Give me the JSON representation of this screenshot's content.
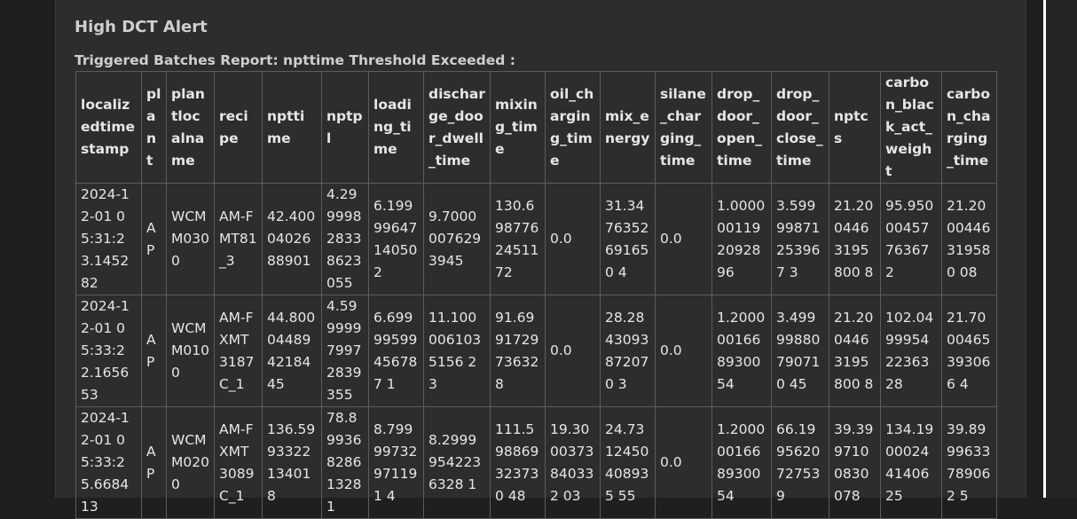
{
  "alert": {
    "title": "High DCT Alert",
    "subtitle": "Triggered Batches Report: npttime Threshold Exceeded :"
  },
  "table": {
    "columns": [
      "localizedtimestamp",
      "plant",
      "plantlocalname",
      "recipe",
      "npttime",
      "nptpl",
      "loading_time",
      "discharge_door_dwell_time",
      "mixing_time",
      "oil_charging_time",
      "mix_energy",
      "silane_charging_time",
      "drop_door_open_time",
      "drop_door_close_time",
      "nptcs",
      "carbon_black_act_weight",
      "carbon_charging_time"
    ],
    "rows": [
      [
        "2024-12-01 05:31:23.145282",
        "AP",
        "WCMM0300",
        "AM-FMT81_3",
        "42.4000402688901",
        "4.29999828338623055",
        "6.19999647140502",
        "9.70000076293945",
        "130.6987762451172",
        "0.0",
        "31.3476352691650 4",
        "0.0",
        "1.00000011920928 96",
        "3.59999871253967 3",
        "21.2004463195800 8",
        "95.9500045776367 2",
        "21.2000446319580 08"
      ],
      [
        "2024-12-01 05:33:22.165653",
        "AP",
        "WCMM0100",
        "AM-FXMT3187C_1",
        "44.8000448942184 45",
        "4.59999979972839 355",
        "6.69999599456787 1",
        "11.1000061035156 23",
        "91.6991729736328",
        "0.0",
        "28.2843093872070 3",
        "0.0",
        "1.20000016689300 54",
        "3.49999880790710 45",
        "21.2004463195800 8",
        "102.049995422363 28",
        "21.7000465393066 4"
      ],
      [
        "2024-12-01 05:33:25.668413",
        "AP",
        "WCMM0200",
        "AM-FXMT3089C_1",
        "136.599332213401 8",
        "78.8993682861328 1",
        "8.79999732971191 4",
        "8.29999542236328 1",
        "111.598869323730 48",
        "19.3000373840332 03",
        "24.7312450408935 55",
        "0.0",
        "1.20000016689300 54",
        "66.1995620727539",
        "39.3997100830078",
        "134.190002441406 25",
        "39.8999633789062 5"
      ]
    ]
  }
}
